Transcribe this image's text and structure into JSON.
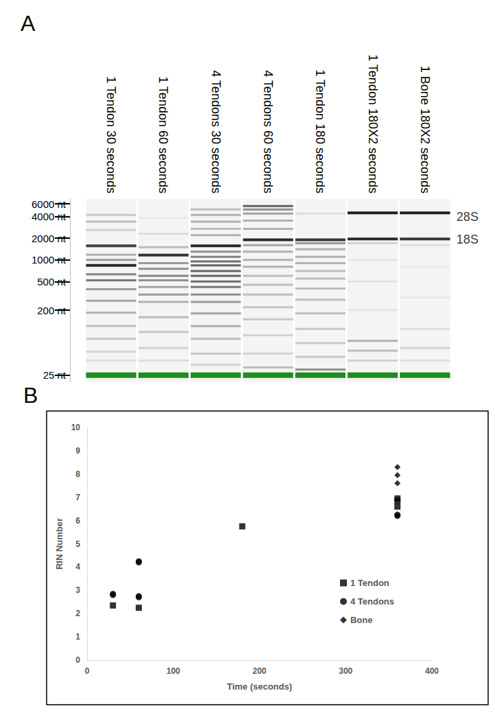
{
  "chart_data": [
    {
      "type": "gel",
      "panel": "A",
      "categories": [
        "1 Tendon 30 seconds",
        "1 Tendon 60 seconds",
        "4 Tendons 30 seconds",
        "4 Tendons 60 seconds",
        "1 Tendon 180 seconds",
        "1 Tendon 180X2 seconds",
        "1 Bone 180X2 seconds"
      ],
      "log": "y",
      "ylim": [
        20,
        7000
      ],
      "yticks": [
        {
          "value": 25,
          "label": "25 nt"
        },
        {
          "value": 200,
          "label": "200 nt"
        },
        {
          "value": 500,
          "label": "500 nt"
        },
        {
          "value": 1000,
          "label": "1000 nt"
        },
        {
          "value": 2000,
          "label": "2000 nt"
        },
        {
          "value": 4000,
          "label": "4000 nt"
        },
        {
          "value": 6000,
          "label": "6000 nt"
        }
      ],
      "grid": false,
      "bands": [
        [
          [
            4200,
            0.25
          ],
          [
            3400,
            0.3
          ],
          [
            2600,
            0.2
          ],
          [
            1570,
            0.85
          ],
          [
            1180,
            0.35
          ],
          [
            1000,
            0.45
          ],
          [
            840,
            0.95
          ],
          [
            630,
            0.55
          ],
          [
            520,
            0.6
          ],
          [
            390,
            0.45
          ],
          [
            270,
            0.4
          ],
          [
            184,
            0.35
          ],
          [
            121,
            0.3
          ],
          [
            80,
            0.25
          ],
          [
            53,
            0.2
          ],
          [
            40,
            0.15
          ]
        ],
        [
          [
            3800,
            0.1
          ],
          [
            2300,
            0.15
          ],
          [
            1500,
            0.3
          ],
          [
            1165,
            0.9
          ],
          [
            900,
            0.45
          ],
          [
            750,
            0.5
          ],
          [
            600,
            0.55
          ],
          [
            520,
            0.5
          ],
          [
            420,
            0.4
          ],
          [
            330,
            0.45
          ],
          [
            260,
            0.35
          ],
          [
            160,
            0.3
          ],
          [
            100,
            0.25
          ],
          [
            60,
            0.2
          ],
          [
            40,
            0.15
          ]
        ],
        [
          [
            5000,
            0.3
          ],
          [
            4200,
            0.35
          ],
          [
            3400,
            0.35
          ],
          [
            2700,
            0.3
          ],
          [
            2200,
            0.35
          ],
          [
            1570,
            0.95
          ],
          [
            1300,
            0.5
          ],
          [
            1100,
            0.55
          ],
          [
            950,
            0.65
          ],
          [
            840,
            0.7
          ],
          [
            700,
            0.7
          ],
          [
            600,
            0.7
          ],
          [
            500,
            0.65
          ],
          [
            420,
            0.6
          ],
          [
            330,
            0.5
          ],
          [
            260,
            0.45
          ],
          [
            180,
            0.4
          ],
          [
            120,
            0.35
          ],
          [
            80,
            0.3
          ],
          [
            50,
            0.25
          ],
          [
            35,
            0.2
          ]
        ],
        [
          [
            5600,
            0.7
          ],
          [
            5000,
            0.5
          ],
          [
            4400,
            0.4
          ],
          [
            3500,
            0.35
          ],
          [
            2700,
            0.35
          ],
          [
            1900,
            0.95
          ],
          [
            1600,
            0.4
          ],
          [
            1300,
            0.35
          ],
          [
            1000,
            0.35
          ],
          [
            800,
            0.35
          ],
          [
            600,
            0.3
          ],
          [
            450,
            0.3
          ],
          [
            330,
            0.3
          ],
          [
            220,
            0.25
          ],
          [
            150,
            0.25
          ],
          [
            90,
            0.2
          ],
          [
            50,
            0.2
          ],
          [
            32,
            0.3
          ]
        ],
        [
          [
            4400,
            0.15
          ],
          [
            1900,
            0.9
          ],
          [
            1700,
            0.45
          ],
          [
            1400,
            0.35
          ],
          [
            1100,
            0.35
          ],
          [
            900,
            0.35
          ],
          [
            700,
            0.3
          ],
          [
            550,
            0.3
          ],
          [
            400,
            0.3
          ],
          [
            280,
            0.3
          ],
          [
            180,
            0.3
          ],
          [
            110,
            0.25
          ],
          [
            70,
            0.25
          ],
          [
            45,
            0.25
          ],
          [
            30,
            0.5
          ]
        ],
        [
          [
            4500,
            1.0
          ],
          [
            1950,
            0.95
          ],
          [
            1700,
            0.2
          ],
          [
            1000,
            0.12
          ],
          [
            500,
            0.12
          ],
          [
            200,
            0.12
          ],
          [
            75,
            0.35
          ],
          [
            55,
            0.3
          ],
          [
            40,
            0.2
          ]
        ],
        [
          [
            4500,
            1.0
          ],
          [
            1950,
            0.9
          ],
          [
            1600,
            0.15
          ],
          [
            800,
            0.1
          ],
          [
            300,
            0.1
          ],
          [
            110,
            0.15
          ],
          [
            60,
            0.2
          ],
          [
            40,
            0.15
          ]
        ]
      ],
      "marker_band": {
        "nt": 25,
        "color": "#1e8c1e"
      },
      "annotations": [
        {
          "text": "28S",
          "y": 4000
        },
        {
          "text": "18S",
          "y": 1900
        }
      ]
    },
    {
      "type": "scatter",
      "panel": "B",
      "xlabel": "Time (seconds)",
      "ylabel": "RIN Number",
      "xlim": [
        0,
        400
      ],
      "xticks": [
        0,
        100,
        200,
        300,
        400
      ],
      "ylim": [
        0,
        10
      ],
      "yticks": [
        0,
        1,
        2,
        3,
        4,
        5,
        6,
        7,
        8,
        9,
        10
      ],
      "grid": false,
      "legend": "lower right",
      "series": [
        {
          "name": "1 Tendon",
          "marker": "square",
          "color": "#000000",
          "x": [
            30,
            60,
            180,
            360,
            360,
            360
          ],
          "values": [
            2.35,
            2.25,
            5.75,
            6.95,
            6.85,
            6.6
          ]
        },
        {
          "name": "4 Tendons",
          "marker": "circle",
          "color": "#000000",
          "x": [
            30,
            30,
            60,
            60,
            60,
            60,
            360,
            360
          ],
          "values": [
            2.85,
            2.8,
            4.25,
            4.2,
            2.75,
            2.7,
            6.25,
            6.2
          ]
        },
        {
          "name": "Bone",
          "marker": "diamond",
          "color": "#000000",
          "x": [
            360,
            360,
            360
          ],
          "values": [
            8.3,
            7.95,
            7.6
          ]
        }
      ]
    }
  ]
}
